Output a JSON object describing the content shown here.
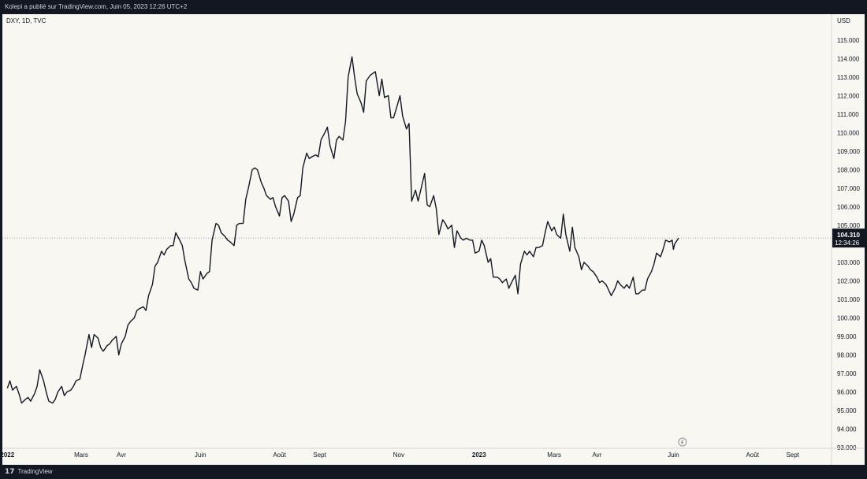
{
  "header": {
    "title": "Kolepi a publié sur TradingView.com, Juin 05, 2023 12:26 UTC+2"
  },
  "chart_info": {
    "symbol": "DXY, 1D, TVC",
    "currency": "USD"
  },
  "footer": {
    "brand": "TradingView",
    "brand_mark": "17"
  },
  "last_price": {
    "value": "104.310",
    "countdown": "12:34:26"
  },
  "colors": {
    "line": "#131722",
    "background": "#f8f7f2",
    "frame": "#131722",
    "dotted": "#9598a1"
  },
  "chart_data": {
    "type": "line",
    "title": "",
    "series": [
      {
        "values": [
          [
            "2022-01-03",
            96.2
          ],
          [
            "2022-01-05",
            96.6
          ],
          [
            "2022-01-07",
            96.1
          ],
          [
            "2022-01-10",
            96.3
          ],
          [
            "2022-01-12",
            95.9
          ],
          [
            "2022-01-14",
            95.4
          ],
          [
            "2022-01-17",
            95.6
          ],
          [
            "2022-01-19",
            95.7
          ],
          [
            "2022-01-21",
            95.5
          ],
          [
            "2022-01-24",
            95.9
          ],
          [
            "2022-01-26",
            96.3
          ],
          [
            "2022-01-28",
            97.2
          ],
          [
            "2022-01-31",
            96.6
          ],
          [
            "2022-02-02",
            96.0
          ],
          [
            "2022-02-04",
            95.5
          ],
          [
            "2022-02-07",
            95.4
          ],
          [
            "2022-02-09",
            95.6
          ],
          [
            "2022-02-11",
            96.0
          ],
          [
            "2022-02-14",
            96.3
          ],
          [
            "2022-02-16",
            95.8
          ],
          [
            "2022-02-18",
            96.0
          ],
          [
            "2022-02-21",
            96.1
          ],
          [
            "2022-02-23",
            96.3
          ],
          [
            "2022-02-25",
            96.6
          ],
          [
            "2022-02-28",
            96.7
          ],
          [
            "2022-03-02",
            97.4
          ],
          [
            "2022-03-04",
            98.0
          ],
          [
            "2022-03-07",
            99.1
          ],
          [
            "2022-03-09",
            98.4
          ],
          [
            "2022-03-11",
            99.1
          ],
          [
            "2022-03-14",
            98.9
          ],
          [
            "2022-03-16",
            98.4
          ],
          [
            "2022-03-18",
            98.2
          ],
          [
            "2022-03-21",
            98.5
          ],
          [
            "2022-03-23",
            98.6
          ],
          [
            "2022-03-25",
            98.8
          ],
          [
            "2022-03-28",
            99.0
          ],
          [
            "2022-03-30",
            98.0
          ],
          [
            "2022-04-01",
            98.6
          ],
          [
            "2022-04-04",
            99.0
          ],
          [
            "2022-04-06",
            99.6
          ],
          [
            "2022-04-08",
            99.8
          ],
          [
            "2022-04-11",
            100.0
          ],
          [
            "2022-04-13",
            100.4
          ],
          [
            "2022-04-15",
            100.5
          ],
          [
            "2022-04-18",
            100.6
          ],
          [
            "2022-04-20",
            100.4
          ],
          [
            "2022-04-22",
            101.2
          ],
          [
            "2022-04-25",
            101.8
          ],
          [
            "2022-04-27",
            102.8
          ],
          [
            "2022-04-29",
            103.0
          ],
          [
            "2022-05-02",
            103.6
          ],
          [
            "2022-05-04",
            103.4
          ],
          [
            "2022-05-06",
            103.7
          ],
          [
            "2022-05-09",
            103.9
          ],
          [
            "2022-05-11",
            103.9
          ],
          [
            "2022-05-13",
            104.6
          ],
          [
            "2022-05-16",
            104.2
          ],
          [
            "2022-05-18",
            103.9
          ],
          [
            "2022-05-20",
            103.1
          ],
          [
            "2022-05-23",
            102.1
          ],
          [
            "2022-05-25",
            101.9
          ],
          [
            "2022-05-27",
            101.6
          ],
          [
            "2022-05-30",
            101.5
          ],
          [
            "2022-06-01",
            102.5
          ],
          [
            "2022-06-03",
            102.1
          ],
          [
            "2022-06-06",
            102.4
          ],
          [
            "2022-06-08",
            102.5
          ],
          [
            "2022-06-10",
            104.2
          ],
          [
            "2022-06-13",
            105.1
          ],
          [
            "2022-06-15",
            105.0
          ],
          [
            "2022-06-17",
            104.6
          ],
          [
            "2022-06-20",
            104.4
          ],
          [
            "2022-06-22",
            104.2
          ],
          [
            "2022-06-24",
            104.1
          ],
          [
            "2022-06-27",
            103.9
          ],
          [
            "2022-06-29",
            105.0
          ],
          [
            "2022-07-01",
            105.1
          ],
          [
            "2022-07-04",
            105.1
          ],
          [
            "2022-07-06",
            106.4
          ],
          [
            "2022-07-08",
            107.0
          ],
          [
            "2022-07-11",
            108.0
          ],
          [
            "2022-07-13",
            108.1
          ],
          [
            "2022-07-15",
            108.0
          ],
          [
            "2022-07-18",
            107.3
          ],
          [
            "2022-07-20",
            107.0
          ],
          [
            "2022-07-22",
            106.6
          ],
          [
            "2022-07-25",
            106.4
          ],
          [
            "2022-07-27",
            106.5
          ],
          [
            "2022-07-29",
            106.0
          ],
          [
            "2022-08-01",
            105.5
          ],
          [
            "2022-08-03",
            106.5
          ],
          [
            "2022-08-05",
            106.6
          ],
          [
            "2022-08-08",
            106.3
          ],
          [
            "2022-08-10",
            105.2
          ],
          [
            "2022-08-12",
            105.6
          ],
          [
            "2022-08-15",
            106.5
          ],
          [
            "2022-08-17",
            106.6
          ],
          [
            "2022-08-19",
            108.1
          ],
          [
            "2022-08-22",
            108.9
          ],
          [
            "2022-08-24",
            108.6
          ],
          [
            "2022-08-26",
            108.7
          ],
          [
            "2022-08-29",
            108.8
          ],
          [
            "2022-08-31",
            108.7
          ],
          [
            "2022-09-02",
            109.6
          ],
          [
            "2022-09-05",
            110.0
          ],
          [
            "2022-09-07",
            110.3
          ],
          [
            "2022-09-09",
            109.3
          ],
          [
            "2022-09-12",
            108.6
          ],
          [
            "2022-09-14",
            109.6
          ],
          [
            "2022-09-16",
            109.8
          ],
          [
            "2022-09-19",
            109.6
          ],
          [
            "2022-09-21",
            110.6
          ],
          [
            "2022-09-23",
            113.0
          ],
          [
            "2022-09-26",
            114.1
          ],
          [
            "2022-09-28",
            113.0
          ],
          [
            "2022-09-30",
            112.1
          ],
          [
            "2022-10-03",
            111.6
          ],
          [
            "2022-10-05",
            111.1
          ],
          [
            "2022-10-07",
            112.8
          ],
          [
            "2022-10-10",
            113.1
          ],
          [
            "2022-10-12",
            113.2
          ],
          [
            "2022-10-14",
            113.3
          ],
          [
            "2022-10-17",
            112.0
          ],
          [
            "2022-10-19",
            112.9
          ],
          [
            "2022-10-21",
            111.9
          ],
          [
            "2022-10-24",
            112.0
          ],
          [
            "2022-10-26",
            110.8
          ],
          [
            "2022-10-28",
            110.8
          ],
          [
            "2022-10-31",
            111.5
          ],
          [
            "2022-11-02",
            112.0
          ],
          [
            "2022-11-04",
            110.9
          ],
          [
            "2022-11-07",
            110.2
          ],
          [
            "2022-11-09",
            110.5
          ],
          [
            "2022-11-11",
            106.3
          ],
          [
            "2022-11-14",
            106.9
          ],
          [
            "2022-11-16",
            106.3
          ],
          [
            "2022-11-18",
            106.9
          ],
          [
            "2022-11-21",
            107.8
          ],
          [
            "2022-11-23",
            106.1
          ],
          [
            "2022-11-25",
            106.0
          ],
          [
            "2022-11-28",
            106.6
          ],
          [
            "2022-11-30",
            105.9
          ],
          [
            "2022-12-02",
            104.5
          ],
          [
            "2022-12-05",
            105.3
          ],
          [
            "2022-12-07",
            105.1
          ],
          [
            "2022-12-09",
            104.8
          ],
          [
            "2022-12-12",
            105.0
          ],
          [
            "2022-12-14",
            103.8
          ],
          [
            "2022-12-16",
            104.7
          ],
          [
            "2022-12-19",
            104.3
          ],
          [
            "2022-12-21",
            104.2
          ],
          [
            "2022-12-23",
            104.3
          ],
          [
            "2022-12-26",
            104.2
          ],
          [
            "2022-12-28",
            104.2
          ],
          [
            "2022-12-30",
            103.5
          ],
          [
            "2023-01-02",
            103.6
          ],
          [
            "2023-01-04",
            104.2
          ],
          [
            "2023-01-06",
            103.9
          ],
          [
            "2023-01-09",
            103.0
          ],
          [
            "2023-01-11",
            103.2
          ],
          [
            "2023-01-13",
            102.2
          ],
          [
            "2023-01-16",
            102.2
          ],
          [
            "2023-01-18",
            102.1
          ],
          [
            "2023-01-20",
            101.9
          ],
          [
            "2023-01-23",
            102.1
          ],
          [
            "2023-01-25",
            101.6
          ],
          [
            "2023-01-27",
            101.9
          ],
          [
            "2023-01-30",
            102.3
          ],
          [
            "2023-02-01",
            101.3
          ],
          [
            "2023-02-03",
            102.9
          ],
          [
            "2023-02-06",
            103.6
          ],
          [
            "2023-02-08",
            103.4
          ],
          [
            "2023-02-10",
            103.6
          ],
          [
            "2023-02-13",
            103.3
          ],
          [
            "2023-02-15",
            103.8
          ],
          [
            "2023-02-17",
            103.8
          ],
          [
            "2023-02-20",
            103.9
          ],
          [
            "2023-02-22",
            104.6
          ],
          [
            "2023-02-24",
            105.2
          ],
          [
            "2023-02-27",
            104.7
          ],
          [
            "2023-03-01",
            104.9
          ],
          [
            "2023-03-03",
            104.5
          ],
          [
            "2023-03-06",
            104.3
          ],
          [
            "2023-03-08",
            105.6
          ],
          [
            "2023-03-10",
            104.5
          ],
          [
            "2023-03-13",
            103.6
          ],
          [
            "2023-03-15",
            104.9
          ],
          [
            "2023-03-17",
            103.8
          ],
          [
            "2023-03-20",
            103.3
          ],
          [
            "2023-03-22",
            102.6
          ],
          [
            "2023-03-24",
            103.0
          ],
          [
            "2023-03-27",
            102.8
          ],
          [
            "2023-03-29",
            102.6
          ],
          [
            "2023-03-31",
            102.5
          ],
          [
            "2023-04-03",
            102.2
          ],
          [
            "2023-04-05",
            101.9
          ],
          [
            "2023-04-07",
            102.0
          ],
          [
            "2023-04-10",
            101.8
          ],
          [
            "2023-04-12",
            101.5
          ],
          [
            "2023-04-14",
            101.2
          ],
          [
            "2023-04-17",
            101.6
          ],
          [
            "2023-04-19",
            102.0
          ],
          [
            "2023-04-21",
            101.8
          ],
          [
            "2023-04-24",
            101.6
          ],
          [
            "2023-04-26",
            101.8
          ],
          [
            "2023-04-28",
            101.6
          ],
          [
            "2023-05-01",
            102.2
          ],
          [
            "2023-05-03",
            101.3
          ],
          [
            "2023-05-05",
            101.3
          ],
          [
            "2023-05-08",
            101.5
          ],
          [
            "2023-05-10",
            101.5
          ],
          [
            "2023-05-12",
            102.1
          ],
          [
            "2023-05-15",
            102.5
          ],
          [
            "2023-05-17",
            102.9
          ],
          [
            "2023-05-19",
            103.5
          ],
          [
            "2023-05-22",
            103.3
          ],
          [
            "2023-05-24",
            103.7
          ],
          [
            "2023-05-26",
            104.2
          ],
          [
            "2023-05-29",
            104.1
          ],
          [
            "2023-05-31",
            104.2
          ],
          [
            "2023-06-01",
            103.7
          ],
          [
            "2023-06-02",
            104.0
          ],
          [
            "2023-06-05",
            104.31
          ]
        ]
      }
    ],
    "xlabel": "",
    "ylabel": "",
    "x_tick_labels": [
      {
        "date": "2022-01-03",
        "label": "2022",
        "bold": true
      },
      {
        "date": "2022-03-01",
        "label": "Mars",
        "bold": false
      },
      {
        "date": "2022-04-01",
        "label": "Avr",
        "bold": false
      },
      {
        "date": "2022-06-01",
        "label": "Juin",
        "bold": false
      },
      {
        "date": "2022-08-01",
        "label": "Août",
        "bold": false
      },
      {
        "date": "2022-09-01",
        "label": "Sept",
        "bold": false
      },
      {
        "date": "2022-11-01",
        "label": "Nov",
        "bold": false
      },
      {
        "date": "2023-01-02",
        "label": "2023",
        "bold": true
      },
      {
        "date": "2023-03-01",
        "label": "Mars",
        "bold": false
      },
      {
        "date": "2023-04-03",
        "label": "Avr",
        "bold": false
      },
      {
        "date": "2023-06-01",
        "label": "Juin",
        "bold": false
      },
      {
        "date": "2023-08-01",
        "label": "Août",
        "bold": false
      },
      {
        "date": "2023-09-01",
        "label": "Sept",
        "bold": false
      }
    ],
    "xlim": [
      "2022-01-01",
      "2023-10-01"
    ],
    "y_ticks": [
      "115.000",
      "114.000",
      "113.000",
      "112.000",
      "111.000",
      "110.000",
      "109.000",
      "108.000",
      "107.000",
      "106.000",
      "105.000",
      "103.000",
      "102.000",
      "101.000",
      "100.000",
      "99.000",
      "98.000",
      "97.000",
      "96.000",
      "95.000",
      "94.000",
      "93.000"
    ],
    "ylim": [
      93.0,
      116.4
    ],
    "grid": false,
    "last_value_line": 104.31
  }
}
